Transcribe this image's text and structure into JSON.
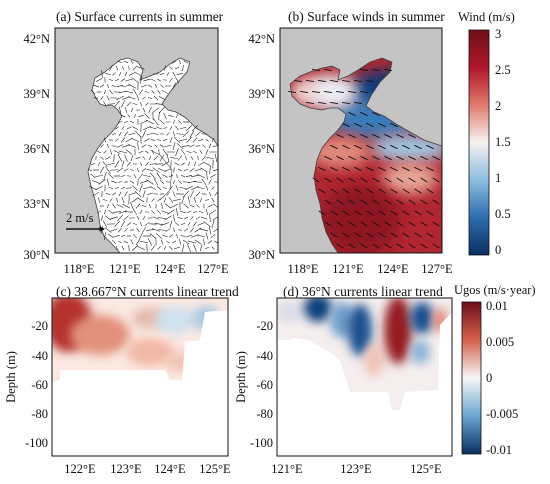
{
  "panels": {
    "a": {
      "title": "(a) Surface currents in summer",
      "scale_label": "2 m/s",
      "lat_ticks": [
        "42°N",
        "39°N",
        "36°N",
        "33°N",
        "30°N"
      ],
      "lon_ticks": [
        "118°E",
        "121°E",
        "124°E",
        "127°E"
      ]
    },
    "b": {
      "title": "(b) Surface winds in summer",
      "lat_ticks": [
        "42°N",
        "39°N",
        "36°N",
        "33°N",
        "30°N"
      ],
      "lon_ticks": [
        "118°E",
        "121°E",
        "124°E",
        "127°E"
      ]
    },
    "c": {
      "title": "(c) 38.667°N currents linear trend",
      "ylabel": "Depth (m)",
      "depth_ticks": [
        "-20",
        "-40",
        "-60",
        "-80",
        "-100"
      ],
      "lon_ticks": [
        "122°E",
        "123°E",
        "124°E",
        "125°E"
      ]
    },
    "d": {
      "title": "(d) 36°N currents linear trend",
      "ylabel": "Depth (m)",
      "depth_ticks": [
        "-20",
        "-40",
        "-60",
        "-80",
        "-100"
      ],
      "lon_ticks": [
        "121°E",
        "123°E",
        "125°E"
      ]
    }
  },
  "colorbars": {
    "wind": {
      "title": "Wind (m/s)",
      "ticks": [
        "3",
        "2.5",
        "2",
        "1.5",
        "1",
        "0.5",
        "0"
      ]
    },
    "ugos": {
      "title": "Ugos (m/s·year)",
      "ticks": [
        "0.01",
        "0.005",
        "0",
        "-0.005",
        "-0.01"
      ]
    }
  },
  "colors": {
    "land": "#c4c4c4",
    "positive": "#8b1a1e",
    "negative": "#0e3f7a",
    "neutral": "#f5f5f5"
  }
}
